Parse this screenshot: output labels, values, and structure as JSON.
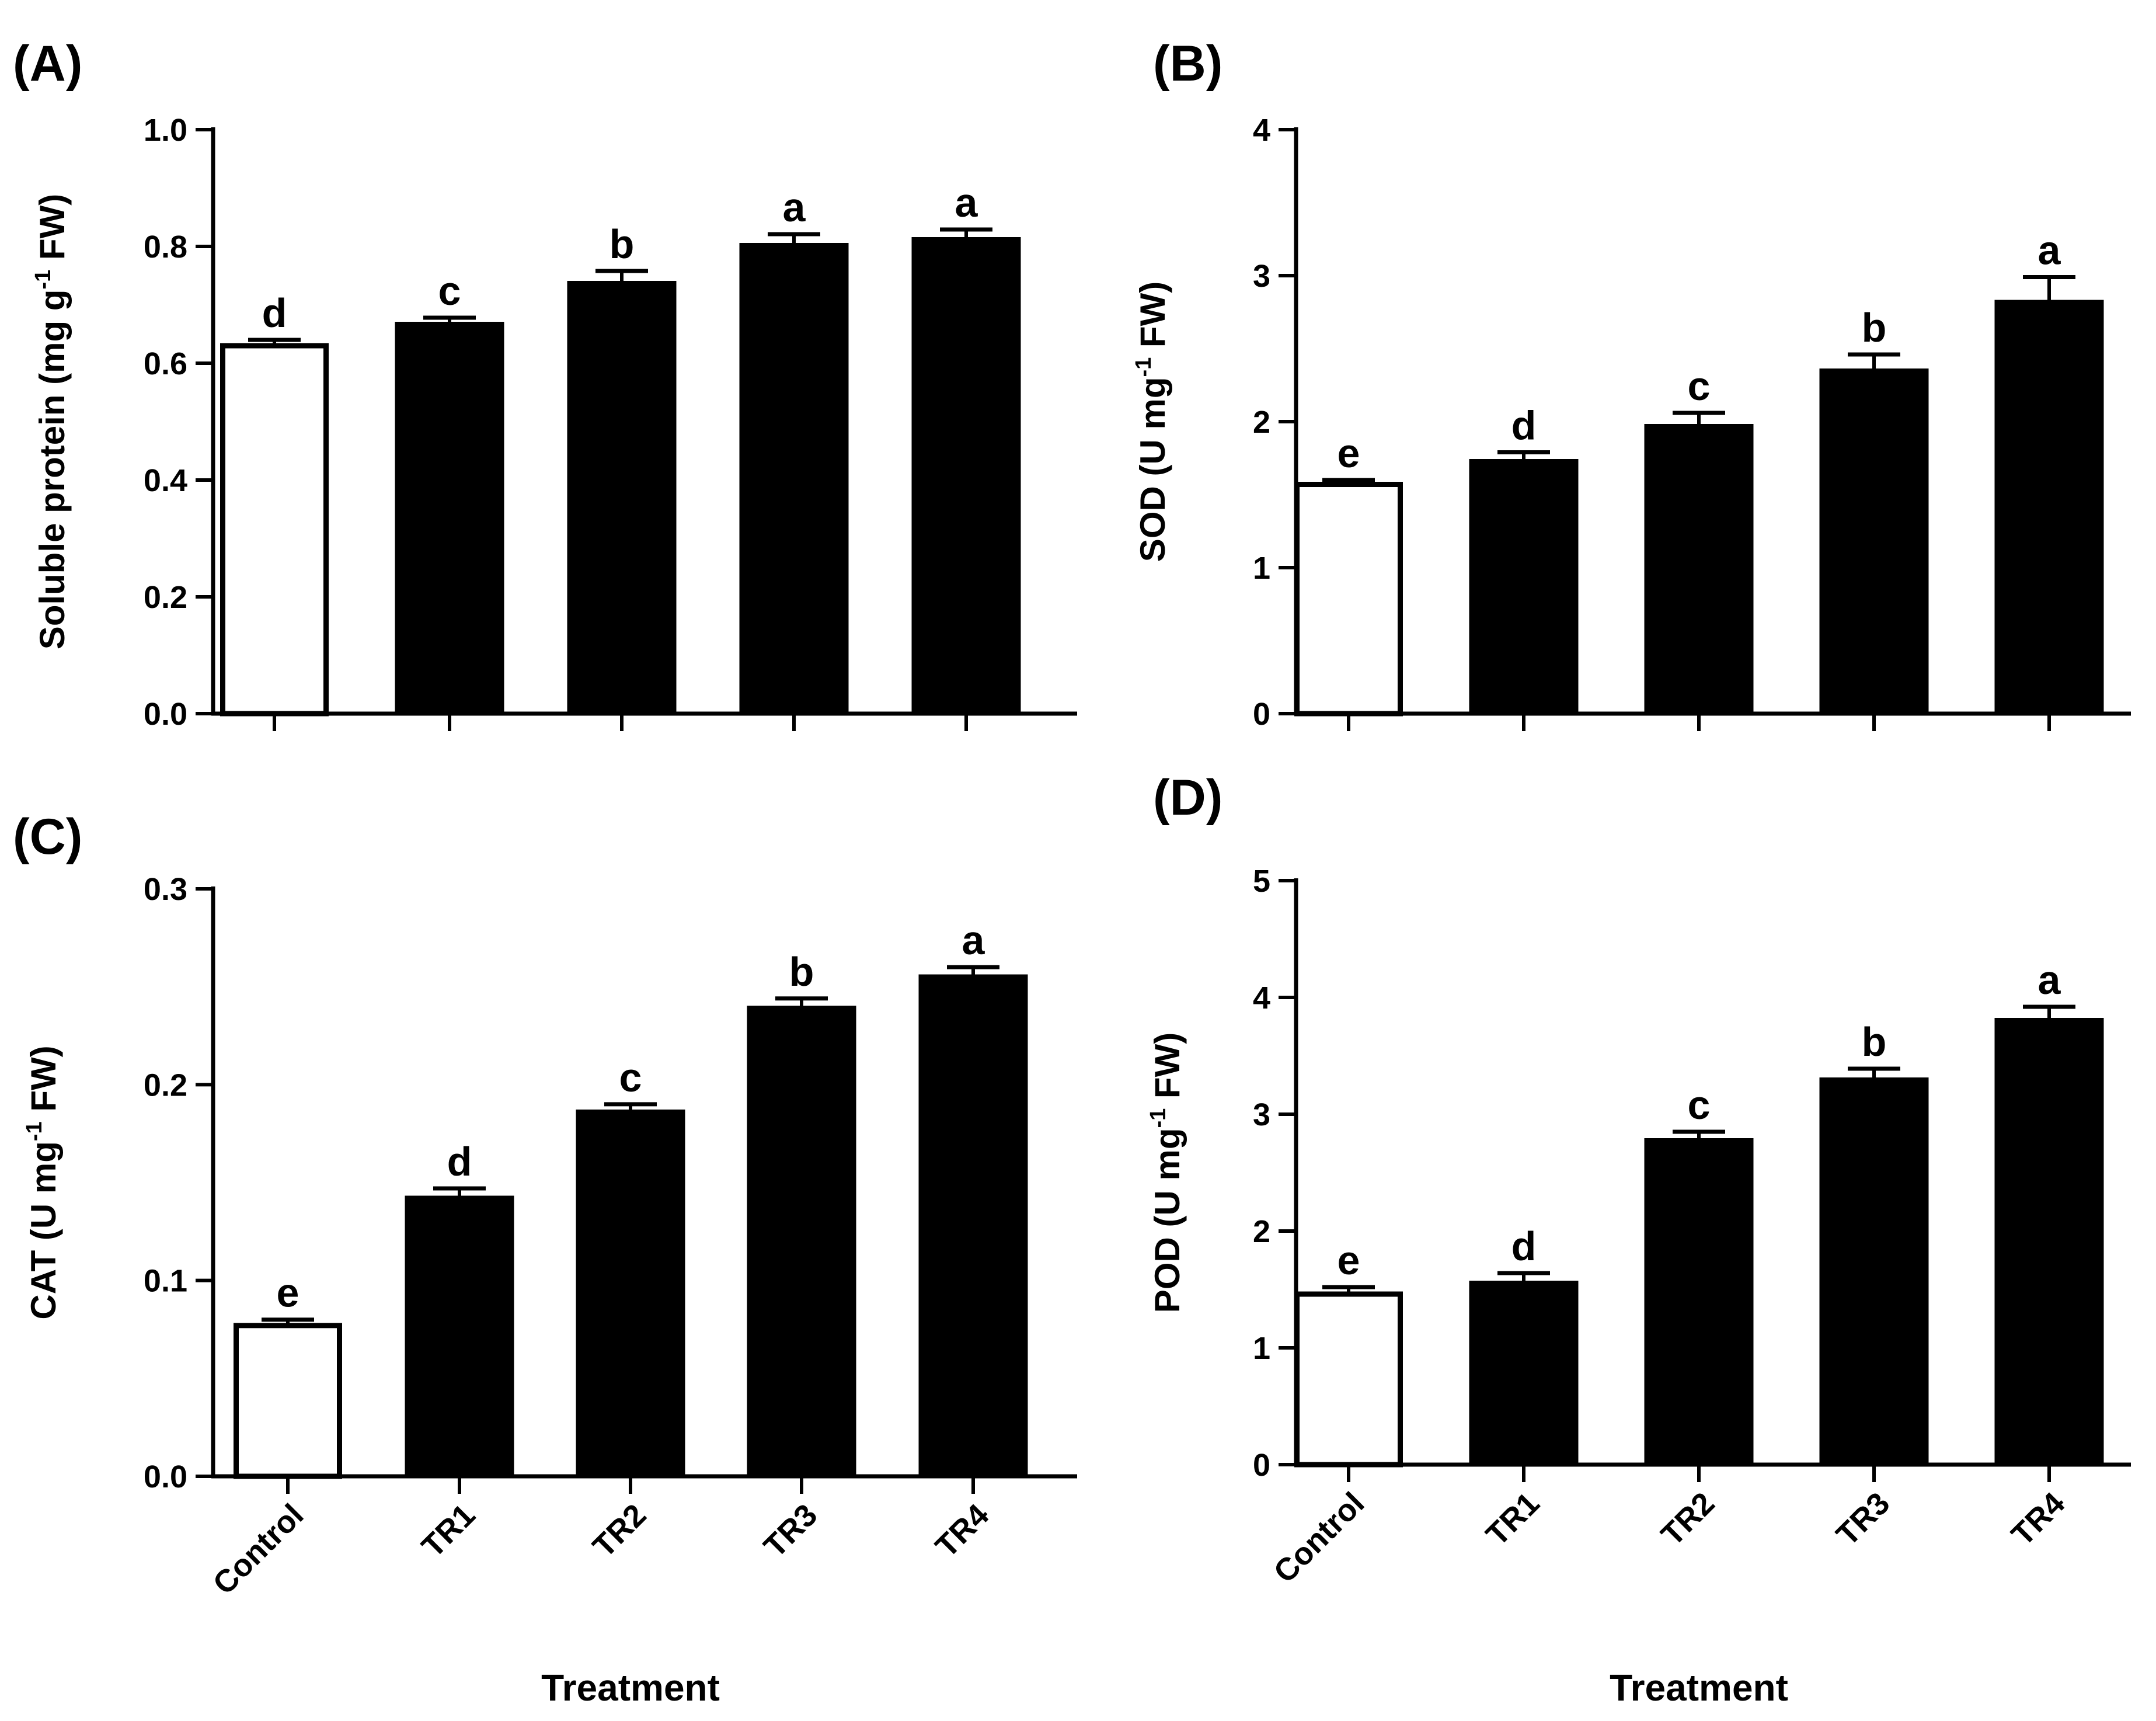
{
  "chart_data": [
    {
      "type": "bar",
      "panel": "(A)",
      "ylabel": "Soluble protein (mg g",
      "ylabel_sup": "-1",
      "ylabel_tail": " FW)",
      "ylim": [
        0,
        1.0
      ],
      "yticks": [
        "0.0",
        "0.2",
        "0.4",
        "0.6",
        "0.8",
        "1.0"
      ],
      "categories": [
        "Control",
        "TR1",
        "TR2",
        "TR3",
        "TR4"
      ],
      "show_category_labels": false,
      "values": [
        0.63,
        0.67,
        0.74,
        0.805,
        0.815
      ],
      "errors": [
        0.01,
        0.008,
        0.018,
        0.016,
        0.014
      ],
      "letters": [
        "d",
        "c",
        "b",
        "a",
        "a"
      ],
      "bar_fills": [
        "#ffffff",
        "#000000",
        "#000000",
        "#000000",
        "#000000"
      ],
      "xlabel": ""
    },
    {
      "type": "bar",
      "panel": "(B)",
      "ylabel": "SOD (U mg",
      "ylabel_sup": "-1",
      "ylabel_tail": " FW)",
      "ylim": [
        0,
        4
      ],
      "yticks": [
        "0",
        "1",
        "2",
        "3",
        "4"
      ],
      "categories": [
        "Control",
        "TR1",
        "TR2",
        "TR3",
        "TR4"
      ],
      "show_category_labels": false,
      "values": [
        1.57,
        1.74,
        1.98,
        2.36,
        2.83
      ],
      "errors": [
        0.03,
        0.05,
        0.08,
        0.1,
        0.16
      ],
      "letters": [
        "e",
        "d",
        "c",
        "b",
        "a"
      ],
      "bar_fills": [
        "#ffffff",
        "#000000",
        "#000000",
        "#000000",
        "#000000"
      ],
      "xlabel": ""
    },
    {
      "type": "bar",
      "panel": "(C)",
      "ylabel": "CAT (U mg",
      "ylabel_sup": "-1",
      "ylabel_tail": " FW)",
      "ylim": [
        0,
        0.3
      ],
      "yticks": [
        "0.0",
        "0.1",
        "0.2",
        "0.3"
      ],
      "categories": [
        "Control",
        "TR1",
        "TR2",
        "TR3",
        "TR4"
      ],
      "show_category_labels": true,
      "values": [
        0.077,
        0.143,
        0.187,
        0.24,
        0.256
      ],
      "errors": [
        0.003,
        0.004,
        0.003,
        0.004,
        0.004
      ],
      "letters": [
        "e",
        "d",
        "c",
        "b",
        "a"
      ],
      "bar_fills": [
        "#ffffff",
        "#000000",
        "#000000",
        "#000000",
        "#000000"
      ],
      "xlabel": "Treatment"
    },
    {
      "type": "bar",
      "panel": "(D)",
      "ylabel": "POD (U mg",
      "ylabel_sup": "-1",
      "ylabel_tail": " FW)",
      "ylim": [
        0,
        5
      ],
      "yticks": [
        "0",
        "1",
        "2",
        "3",
        "4",
        "5"
      ],
      "categories": [
        "Control",
        "TR1",
        "TR2",
        "TR3",
        "TR4"
      ],
      "show_category_labels": true,
      "values": [
        1.46,
        1.57,
        2.79,
        3.31,
        3.82
      ],
      "errors": [
        0.06,
        0.07,
        0.06,
        0.08,
        0.1
      ],
      "letters": [
        "e",
        "d",
        "c",
        "b",
        "a"
      ],
      "bar_fills": [
        "#ffffff",
        "#000000",
        "#000000",
        "#000000",
        "#000000"
      ],
      "xlabel": "Treatment"
    }
  ]
}
